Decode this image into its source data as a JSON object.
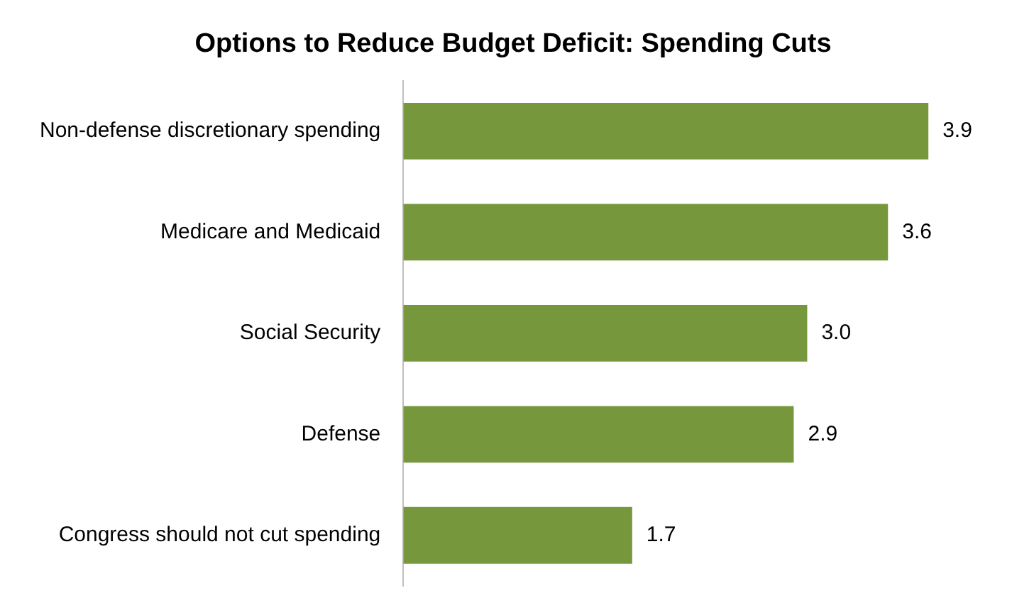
{
  "chart_data": {
    "type": "bar",
    "orientation": "horizontal",
    "title": "Options to Reduce Budget Deficit: Spending Cuts",
    "categories": [
      "Non-defense discretionary spending",
      "Medicare and Medicaid",
      "Social Security",
      "Defense",
      "Congress should not cut spending"
    ],
    "values": [
      3.9,
      3.6,
      3.0,
      2.9,
      1.7
    ],
    "value_labels": [
      "3.9",
      "3.6",
      "3.0",
      "2.9",
      "1.7"
    ],
    "color": "#77973d",
    "tick_labels": "y"
  }
}
